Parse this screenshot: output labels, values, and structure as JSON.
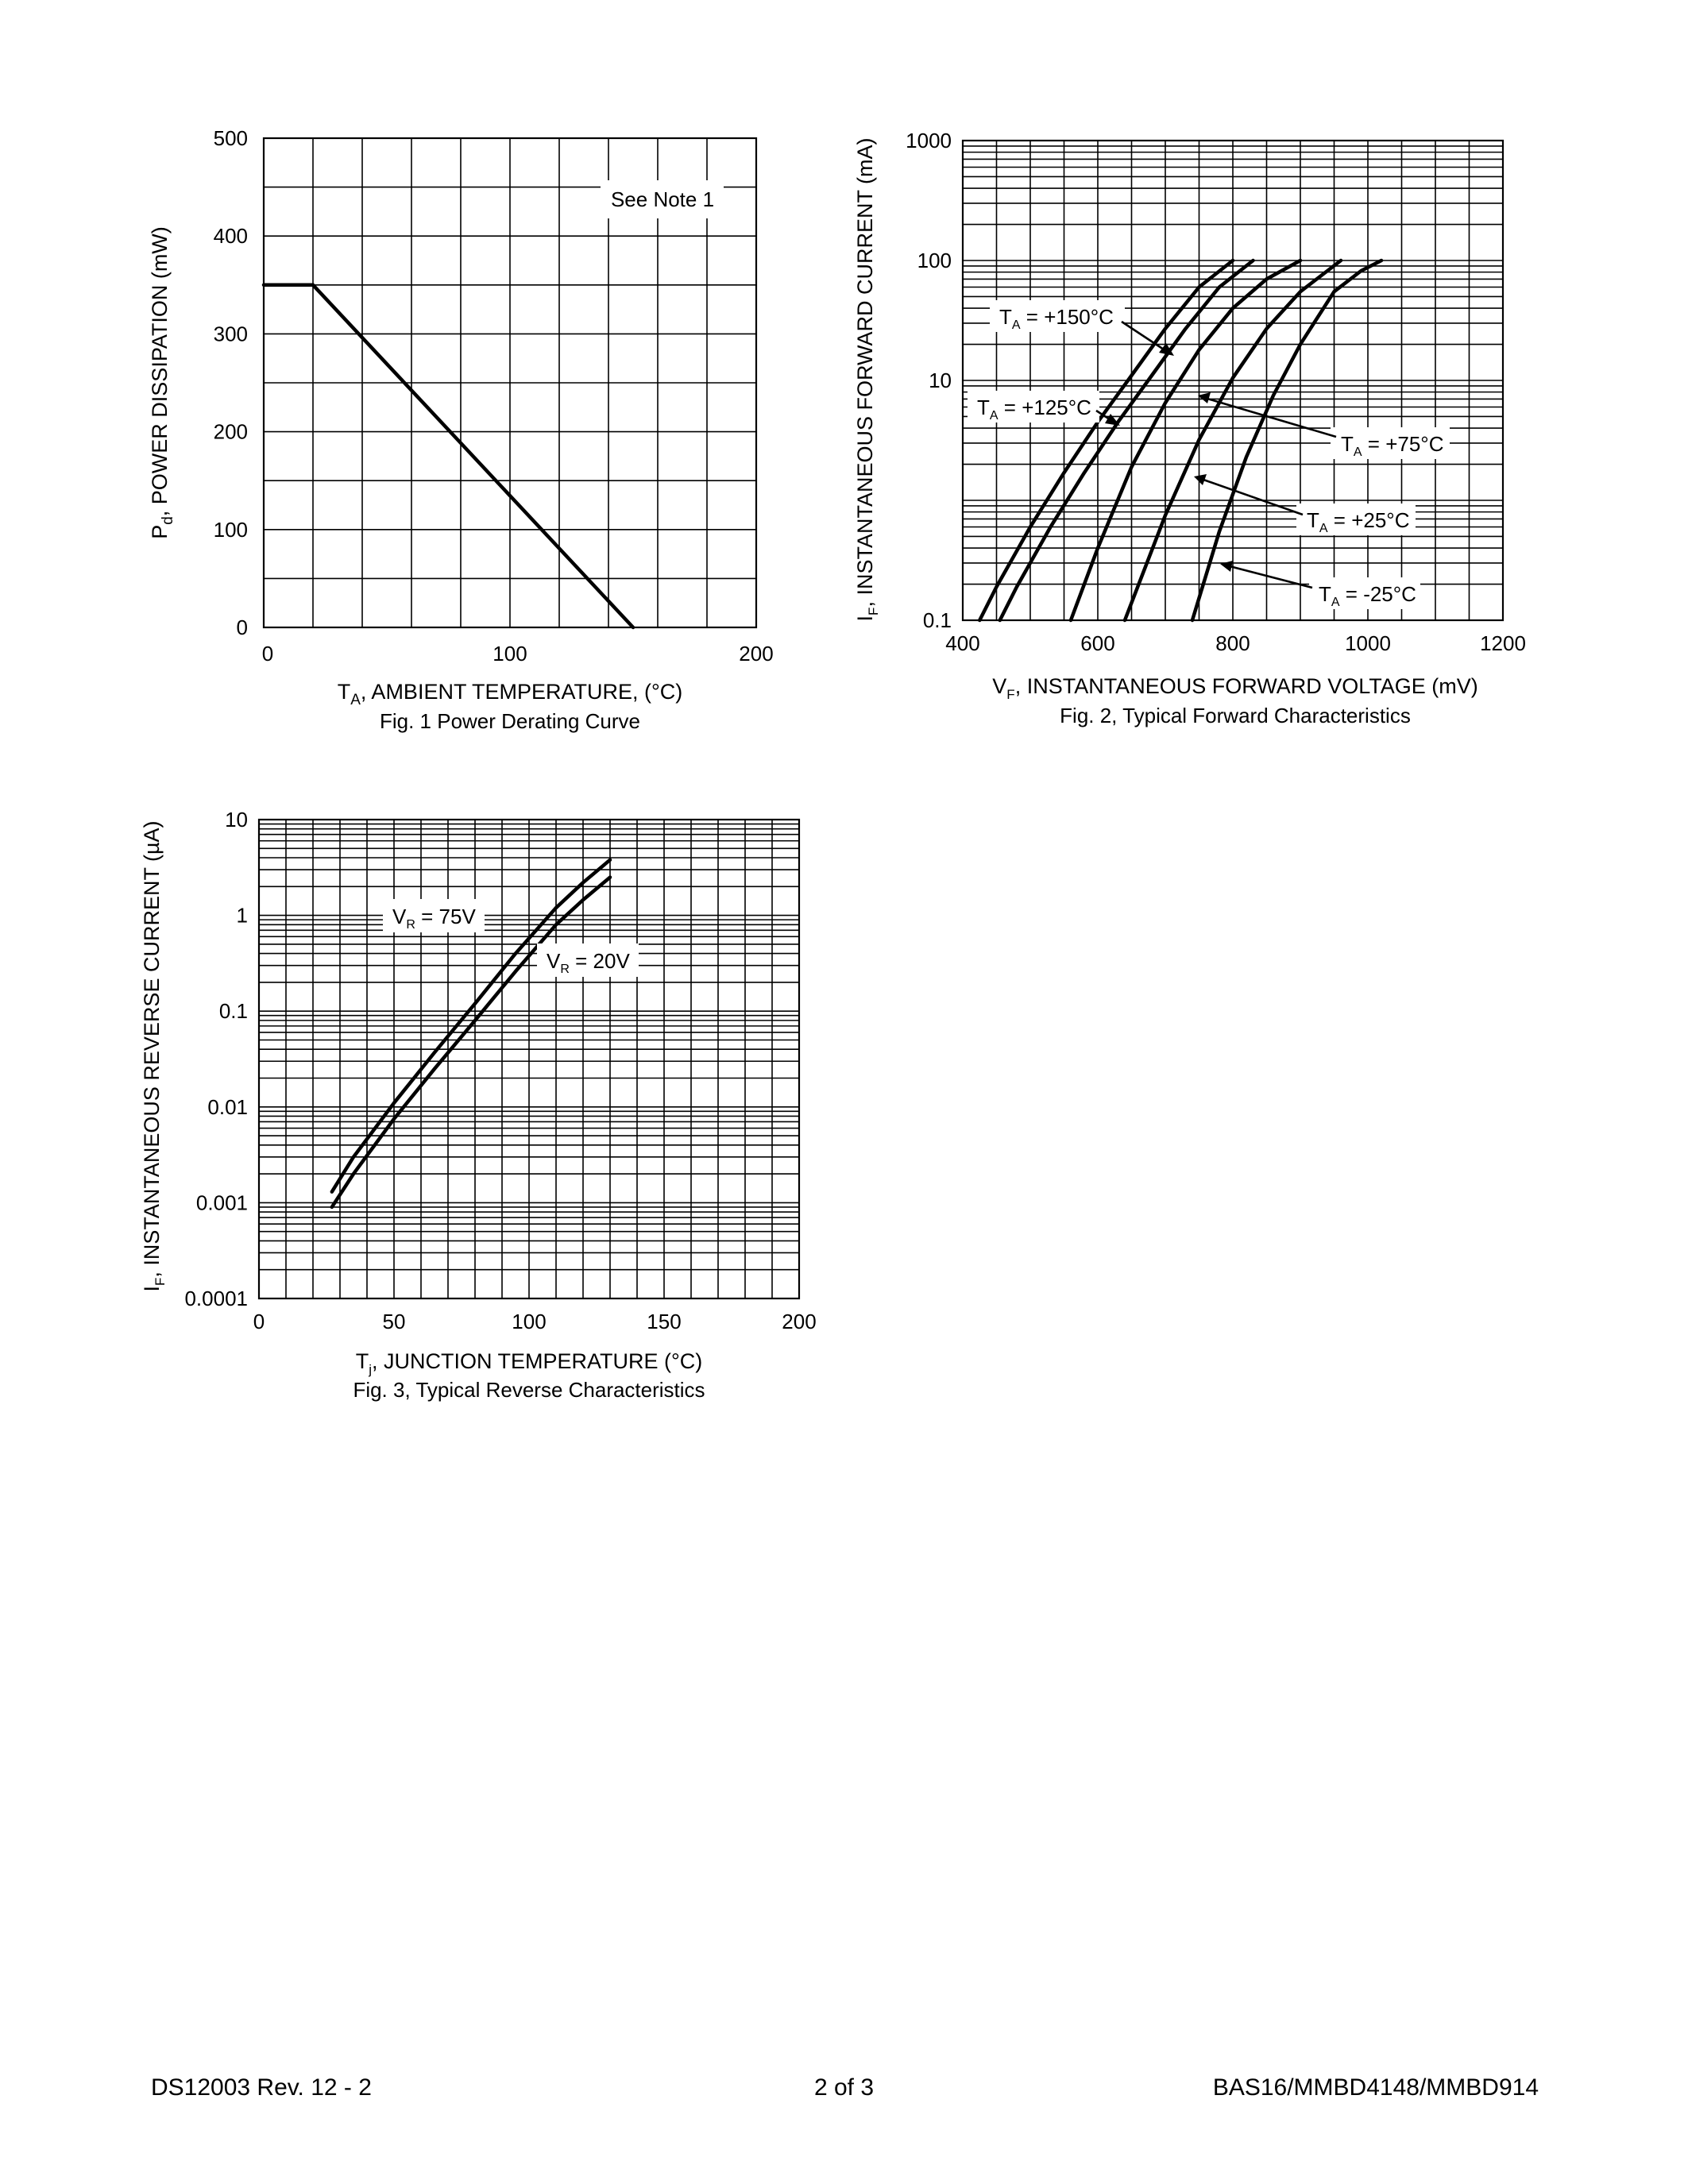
{
  "footer": {
    "left": "DS12003 Rev. 12 - 2",
    "center": "2 of 3",
    "right": "BAS16/MMBD4148/MMBD914"
  },
  "chart_data": [
    {
      "type": "line",
      "title": "Fig. 1  Power Derating Curve",
      "xlabel": "T",
      "xlabel_sub": "A",
      "xlabel_rest": ", AMBIENT TEMPERATURE, (°C)",
      "ylabel": "P",
      "ylabel_sub": "d",
      "ylabel_rest": ", POWER DISSIPATION (mW)",
      "xlim": [
        0,
        200
      ],
      "ylim": [
        0,
        500
      ],
      "xticks": [
        "0",
        "100",
        "200"
      ],
      "yticks": [
        "0",
        "100",
        "200",
        "300",
        "400",
        "500"
      ],
      "note": "See Note 1",
      "series": [
        {
          "x": [
            0,
            20,
            150
          ],
          "y": [
            350,
            350,
            0
          ]
        }
      ]
    },
    {
      "type": "line",
      "title": "Fig. 2, Typical Forward Characteristics",
      "xlabel": "V",
      "xlabel_sub": "F",
      "xlabel_rest": ", INSTANTANEOUS FORWARD VOLTAGE (mV)",
      "ylabel": "I",
      "ylabel_sub": "F",
      "ylabel_rest": ", INSTANTANEOUS FORWARD CURRENT (mA)",
      "xlim": [
        400,
        1200
      ],
      "ylim": [
        0.1,
        1000
      ],
      "yscale": "log",
      "xticks": [
        "400",
        "600",
        "800",
        "1000",
        "1200"
      ],
      "yticks": [
        "0.1",
        "10",
        "100",
        "1000"
      ],
      "series": [
        {
          "name": "+150°C",
          "label": "T",
          "label_sub": "A",
          "label_rest": " = +150°C",
          "x": [
            425,
            450,
            500,
            550,
            600,
            650,
            700,
            750,
            800
          ],
          "y": [
            0.1,
            0.19,
            0.6,
            1.7,
            4.5,
            11,
            27,
            60,
            100
          ]
        },
        {
          "name": "+125°C",
          "label": "T",
          "label_sub": "A",
          "label_rest": " = +125°C",
          "x": [
            455,
            480,
            530,
            580,
            630,
            680,
            730,
            780,
            830
          ],
          "y": [
            0.1,
            0.19,
            0.6,
            1.7,
            4.5,
            11,
            27,
            60,
            100
          ]
        },
        {
          "name": "+75°C",
          "label": "T",
          "label_sub": "A",
          "label_rest": " = +75°C",
          "x": [
            560,
            600,
            650,
            700,
            750,
            800,
            850,
            900
          ],
          "y": [
            0.1,
            0.4,
            1.9,
            6.5,
            18,
            40,
            70,
            100
          ]
        },
        {
          "name": "+25°C",
          "label": "T",
          "label_sub": "A",
          "label_rest": " = +25°C",
          "x": [
            640,
            700,
            750,
            800,
            850,
            900,
            960
          ],
          "y": [
            0.1,
            0.75,
            3.2,
            10.5,
            27,
            55,
            100
          ]
        },
        {
          "name": "-25°C",
          "label": "T",
          "label_sub": "A",
          "label_rest": " = -25°C",
          "x": [
            740,
            780,
            820,
            860,
            900,
            950,
            990,
            1020
          ],
          "y": [
            0.1,
            0.55,
            2.3,
            7.5,
            20,
            55,
            82,
            100
          ]
        }
      ]
    },
    {
      "type": "line",
      "title": "Fig. 3, Typical Reverse Characteristics",
      "xlabel": "T",
      "xlabel_sub": "j",
      "xlabel_rest": ", JUNCTION TEMPERATURE (°C)",
      "ylabel": "I",
      "ylabel_sub": "F",
      "ylabel_rest": ", INSTANTANEOUS REVERSE CURRENT (µA)",
      "xlim": [
        0,
        200
      ],
      "ylim": [
        0.0001,
        10
      ],
      "yscale": "log",
      "xticks": [
        "0",
        "50",
        "100",
        "150",
        "200"
      ],
      "yticks": [
        "0.0001",
        "0.001",
        "0.01",
        "0.1",
        "1",
        "10"
      ],
      "series": [
        {
          "name": "75V",
          "label": "V",
          "label_sub": "R",
          "label_rest": " = 75V",
          "x": [
            27,
            35,
            50,
            65,
            80,
            95,
            110,
            120,
            130
          ],
          "y": [
            0.0013,
            0.003,
            0.011,
            0.037,
            0.12,
            0.4,
            1.2,
            2.2,
            3.8
          ]
        },
        {
          "name": "20V",
          "label": "V",
          "label_sub": "R",
          "label_rest": " = 20V",
          "x": [
            27,
            35,
            50,
            65,
            80,
            95,
            110,
            120,
            130
          ],
          "y": [
            0.0009,
            0.002,
            0.0075,
            0.025,
            0.08,
            0.26,
            0.8,
            1.45,
            2.5
          ]
        }
      ]
    }
  ]
}
